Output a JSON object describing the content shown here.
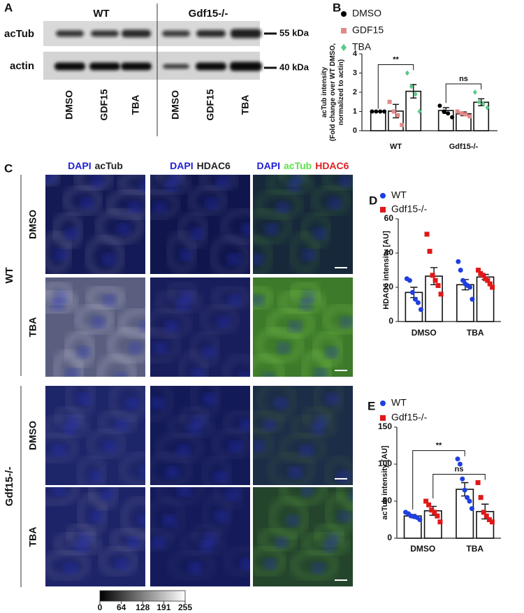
{
  "blot": {
    "panel_label": "A",
    "groups": [
      "WT",
      "Gdf15-/-"
    ],
    "rows": [
      "acTub",
      "actin"
    ],
    "markers": [
      "55 kDa",
      "40 kDa"
    ],
    "lanes": [
      "DMSO",
      "GDF15",
      "TBA",
      "DMSO",
      "GDF15",
      "TBA"
    ]
  },
  "micrographs": {
    "panel_label": "C",
    "columns": [
      [
        {
          "text": "DAPI",
          "color": "#1f1fd6"
        },
        {
          "text": "acTub",
          "color": "#222222"
        }
      ],
      [
        {
          "text": "DAPI",
          "color": "#1f1fd6"
        },
        {
          "text": "HDAC6",
          "color": "#222222"
        }
      ],
      [
        {
          "text": "DAPI",
          "color": "#1f1fd6"
        },
        {
          "text": "acTub",
          "color": "#5ee04a"
        },
        {
          "text": "HDAC6",
          "color": "#e02020"
        }
      ]
    ],
    "rows": [
      "DMSO",
      "TBA",
      "DMSO",
      "TBA"
    ],
    "groups": [
      "WT",
      "Gdf15-/-"
    ],
    "colorbar_ticks": [
      0,
      64,
      128,
      191,
      255
    ]
  },
  "chart_data": [
    {
      "type": "bar",
      "panel_label": "B",
      "ylabel": [
        "acTub intensity",
        "(Fold change over WT DMSO,",
        "normalized to actin)"
      ],
      "categories": [
        "WT",
        "Gdf15-/-"
      ],
      "ylim": [
        0,
        4
      ],
      "yticks": [
        0,
        1,
        2,
        3,
        4
      ],
      "annotations": [
        "**",
        "ns"
      ],
      "series": [
        {
          "name": "DMSO",
          "color": "#000000",
          "marker": "circle",
          "values": [
            1.0,
            1.05
          ],
          "errors": [
            0.0,
            0.15
          ],
          "points": [
            [
              1.0,
              1.0,
              1.0,
              1.0
            ],
            [
              1.3,
              1.0,
              0.9,
              0.7
            ]
          ]
        },
        {
          "name": "GDF15",
          "color": "#e08a8a",
          "marker": "square",
          "values": [
            1.02,
            0.88
          ],
          "errors": [
            0.35,
            0.1
          ],
          "points": [
            [
              1.5,
              1.0,
              0.8,
              0.3
            ],
            [
              1.0,
              0.9,
              0.85,
              0.75
            ]
          ]
        },
        {
          "name": "TBA",
          "color": "#5cc98a",
          "marker": "diamond",
          "values": [
            2.05,
            1.48
          ],
          "errors": [
            0.35,
            0.18
          ],
          "points": [
            [
              3.0,
              2.3,
              1.9,
              1.0
            ],
            [
              2.0,
              1.5,
              1.4,
              1.2
            ]
          ]
        }
      ]
    },
    {
      "type": "bar",
      "panel_label": "D",
      "ylabel": [
        "HDAC6 intensity [AU]"
      ],
      "categories": [
        "DMSO",
        "TBA"
      ],
      "ylim": [
        0,
        60
      ],
      "yticks": [
        0,
        20,
        40,
        60
      ],
      "annotations": [],
      "series": [
        {
          "name": "WT",
          "color": "#1f3fe0",
          "marker": "circle",
          "values": [
            17,
            21.5
          ],
          "errors": [
            3,
            3
          ],
          "points": [
            [
              25,
              24,
              17,
              13,
              11,
              7
            ],
            [
              35,
              30,
              24,
              22,
              21,
              20,
              13
            ]
          ]
        },
        {
          "name": "Gdf15-/-",
          "color": "#e01818",
          "marker": "square",
          "values": [
            26.5,
            26
          ],
          "errors": [
            5,
            1.5
          ],
          "points": [
            [
              51,
              41,
              27,
              24,
              21,
              16
            ],
            [
              30,
              28,
              27,
              25,
              24,
              22,
              20
            ]
          ]
        }
      ]
    },
    {
      "type": "bar",
      "panel_label": "E",
      "ylabel": [
        "acTub intensity [AU]"
      ],
      "categories": [
        "DMSO",
        "TBA"
      ],
      "ylim": [
        0,
        150
      ],
      "yticks": [
        0,
        50,
        100,
        150
      ],
      "annotations": [
        "**",
        "ns"
      ],
      "series": [
        {
          "name": "WT",
          "color": "#1f3fe0",
          "marker": "circle",
          "values": [
            30,
            66
          ],
          "errors": [
            2,
            9
          ],
          "points": [
            [
              35,
              33,
              30,
              29,
              28,
              25
            ],
            [
              107,
              100,
              80,
              65,
              55,
              50,
              40
            ]
          ]
        },
        {
          "name": "Gdf15-/-",
          "color": "#e01818",
          "marker": "square",
          "values": [
            37,
            36
          ],
          "errors": [
            6,
            10
          ],
          "points": [
            [
              50,
              45,
              38,
              35,
              30,
              22
            ],
            [
              75,
              55,
              35,
              30,
              25,
              22
            ]
          ]
        }
      ]
    }
  ]
}
